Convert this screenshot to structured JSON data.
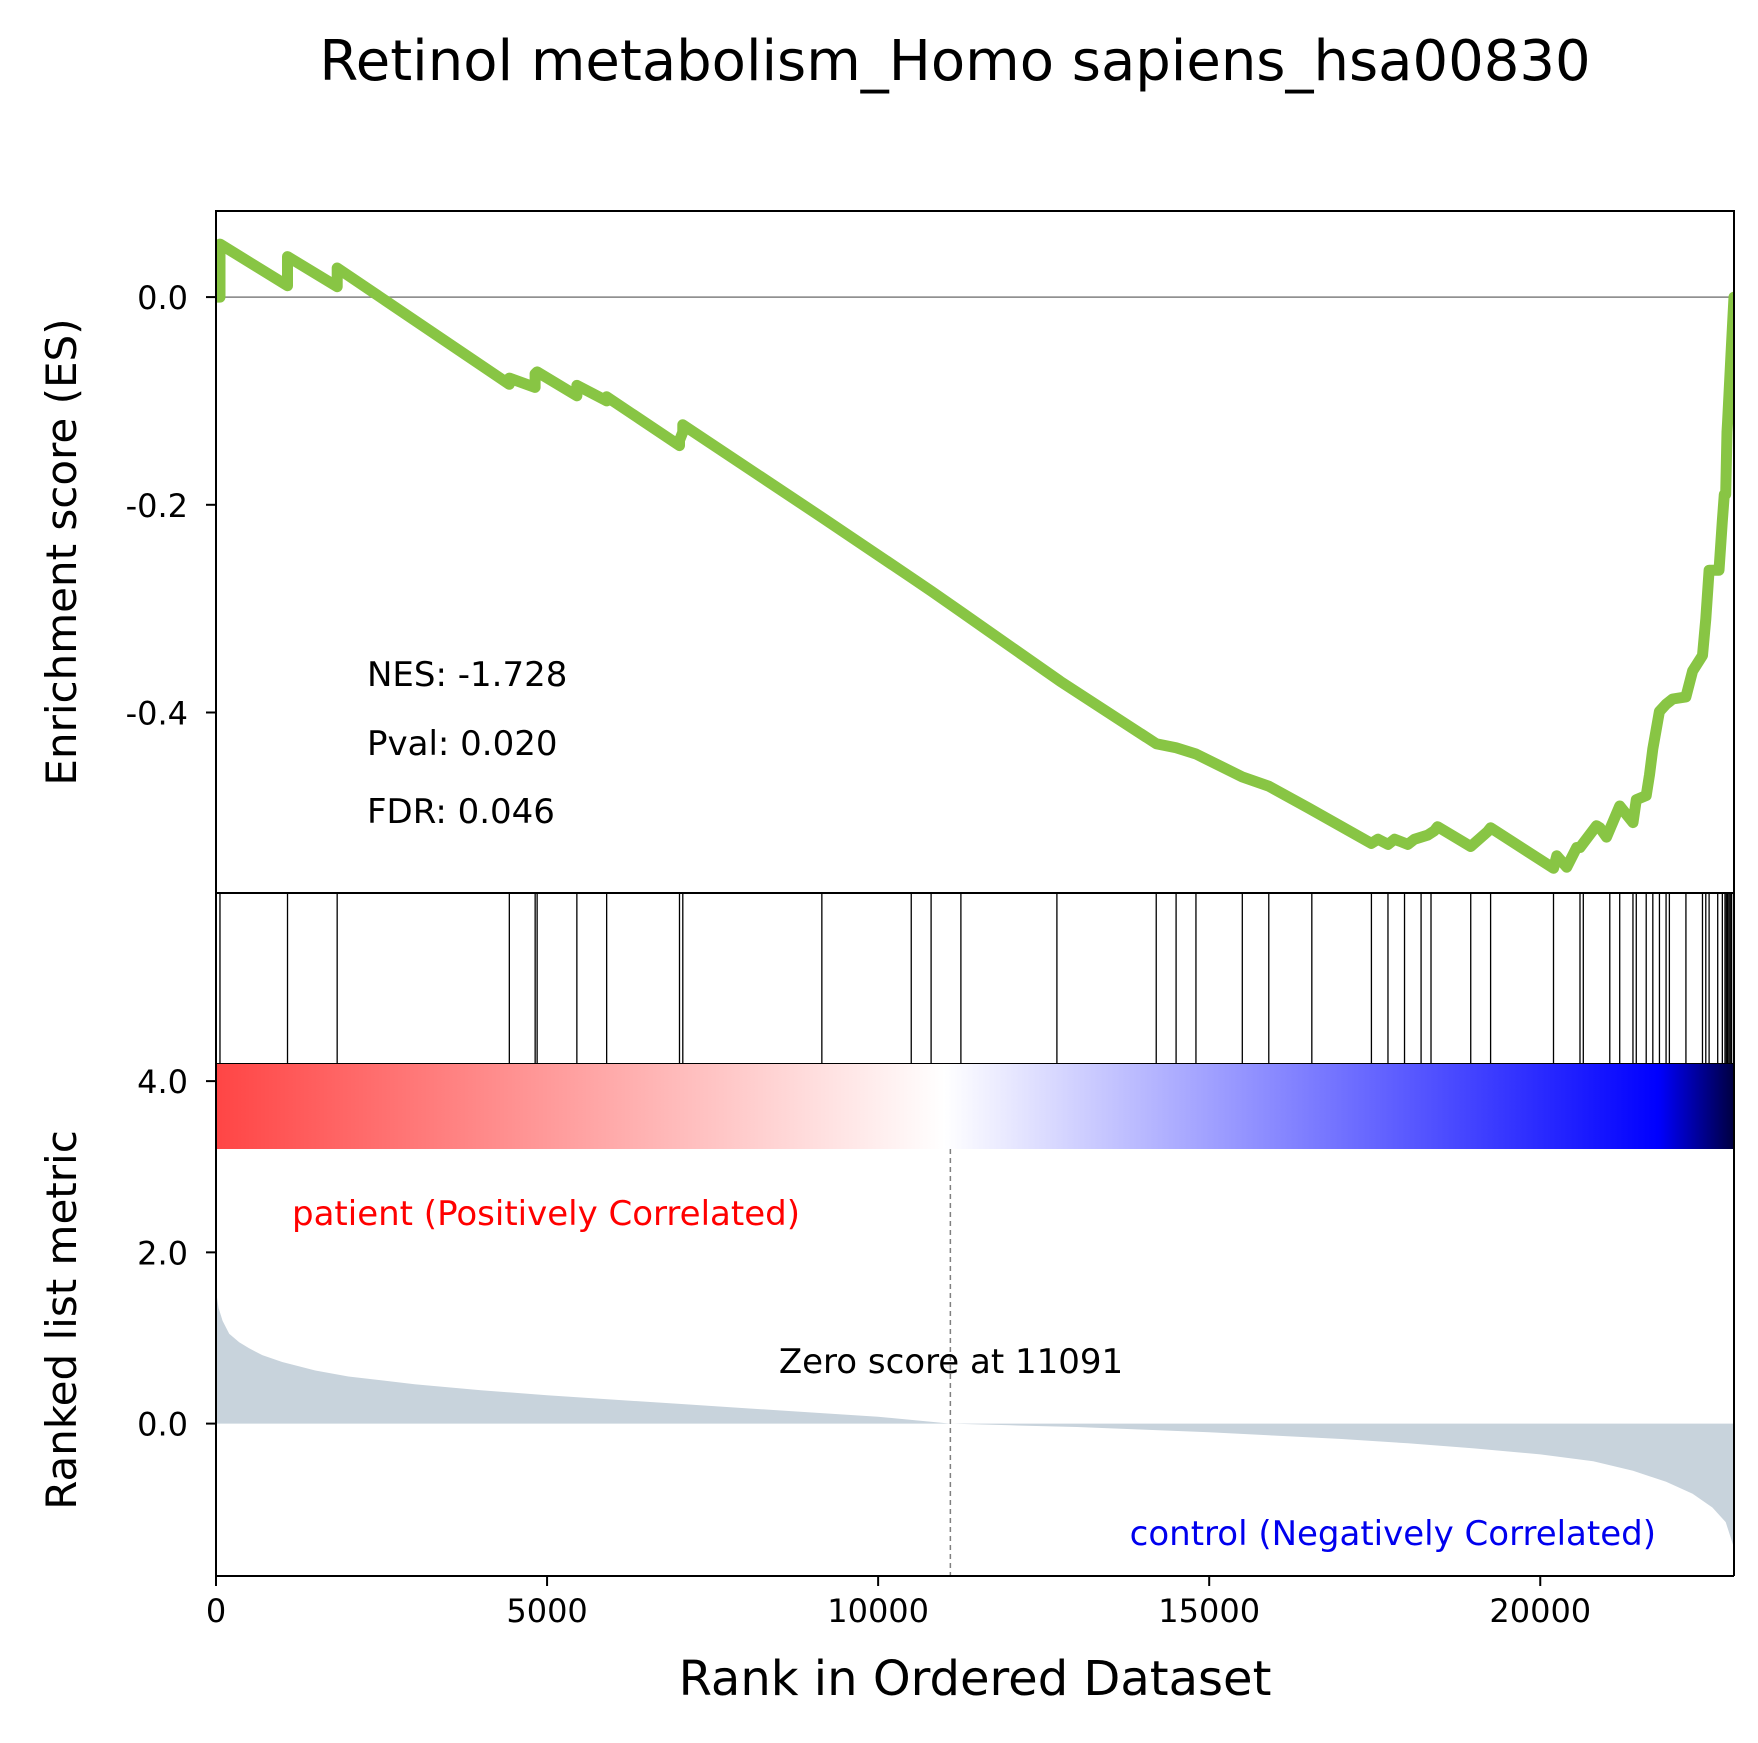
{
  "chart_data": {
    "type": "line",
    "title": "Retinol metabolism_Homo sapiens_hsa00830",
    "xlabel": "Rank in Ordered Dataset",
    "xlim": [
      0,
      22926
    ],
    "x_ticks": [
      "0",
      "5000",
      "10000",
      "15000",
      "20000"
    ],
    "x_tick_values": [
      0,
      5000,
      10000,
      15000,
      20000
    ],
    "es_panel": {
      "ylabel": "Enrichment score (ES)",
      "ylim": [
        -0.5738,
        0.0829
      ],
      "y_ticks": [
        "0.0",
        "-0.2",
        "-0.4"
      ],
      "y_tick_values": [
        0.0,
        -0.2,
        -0.4
      ],
      "zero_line": true,
      "line_color": "#88c544",
      "annotations": [
        "NES: -1.728",
        "Pval: 0.020",
        "FDR: 0.046"
      ],
      "es_curve": {
        "x": [
          0,
          60,
          60,
          1080,
          1080,
          1830,
          1830,
          4430,
          4430,
          4820,
          4820,
          4850,
          4850,
          5450,
          5450,
          5900,
          5900,
          7000,
          7000,
          7050,
          7050,
          9150,
          10500,
          10800,
          11250,
          12750,
          14200,
          14500,
          14800,
          15500,
          15900,
          16500,
          17450,
          17550,
          17700,
          17800,
          18000,
          18100,
          18300,
          18400,
          18450,
          18950,
          19200,
          19250,
          20200,
          20250,
          20400,
          20550,
          20600,
          20850,
          20900,
          21000,
          21200,
          21400,
          21450,
          21600,
          21650,
          21700,
          21800,
          21900,
          22000,
          22200,
          22300,
          22450,
          22500,
          22550,
          22700,
          22750,
          22780,
          22800,
          22820,
          22830,
          22880,
          22926
        ],
        "y": [
          0.0,
          0.0,
          0.051,
          0.011,
          0.039,
          0.01,
          0.028,
          -0.084,
          -0.078,
          -0.087,
          -0.074,
          -0.072,
          -0.072,
          -0.095,
          -0.085,
          -0.1,
          -0.096,
          -0.143,
          -0.138,
          -0.13,
          -0.123,
          -0.212,
          -0.27,
          -0.283,
          -0.303,
          -0.37,
          -0.43,
          -0.434,
          -0.44,
          -0.462,
          -0.471,
          -0.492,
          -0.526,
          -0.522,
          -0.527,
          -0.522,
          -0.527,
          -0.522,
          -0.518,
          -0.514,
          -0.51,
          -0.529,
          -0.515,
          -0.511,
          -0.55,
          -0.538,
          -0.549,
          -0.53,
          -0.53,
          -0.509,
          -0.511,
          -0.52,
          -0.49,
          -0.506,
          -0.484,
          -0.48,
          -0.46,
          -0.435,
          -0.399,
          -0.392,
          -0.387,
          -0.385,
          -0.36,
          -0.345,
          -0.31,
          -0.263,
          -0.263,
          -0.216,
          -0.19,
          -0.19,
          -0.13,
          -0.12,
          -0.055,
          0.0
        ]
      }
    },
    "hits": [
      60,
      1080,
      1830,
      4430,
      4820,
      4850,
      5450,
      5900,
      7000,
      7050,
      9150,
      10500,
      10800,
      11250,
      12700,
      14200,
      14500,
      14800,
      15500,
      15900,
      16550,
      17450,
      17700,
      17950,
      18200,
      18350,
      18950,
      19250,
      20200,
      20600,
      20650,
      21050,
      21200,
      21400,
      21450,
      21600,
      21700,
      21800,
      21900,
      21950,
      22200,
      22450,
      22500,
      22550,
      22680,
      22750,
      22790,
      22810,
      22830,
      22850,
      22870,
      22890
    ],
    "colorbar": {
      "colors": [
        "#ff4545",
        "#ffffff",
        "#0000ff",
        "#000040"
      ]
    },
    "metric_panel": {
      "ylabel": "Ranked list metric",
      "ylim": [
        -1.78,
        4.2
      ],
      "y_ticks": [
        "4.0",
        "2.0",
        "0.0"
      ],
      "y_tick_values": [
        4.0,
        2.0,
        0.0
      ],
      "fill_color": "#c8d3dc",
      "zero_cross": 11091,
      "zero_label": "Zero score at 11091",
      "pos_label": "patient (Positively Correlated)",
      "pos_color": "#ff0000",
      "neg_label": "control (Negatively Correlated)",
      "neg_color": "#0000ee",
      "metric_curve": {
        "x": [
          0,
          40,
          100,
          200,
          350,
          500,
          700,
          1000,
          1500,
          2000,
          3000,
          4000,
          5000,
          6000,
          7000,
          8000,
          9000,
          10000,
          11091,
          12000,
          13000,
          14000,
          15000,
          16000,
          17000,
          18000,
          19000,
          20000,
          20800,
          21400,
          21900,
          22300,
          22600,
          22800,
          22926
        ],
        "y": [
          1.55,
          1.35,
          1.2,
          1.05,
          0.95,
          0.88,
          0.8,
          0.72,
          0.62,
          0.55,
          0.46,
          0.39,
          0.33,
          0.28,
          0.23,
          0.18,
          0.13,
          0.08,
          0.0,
          -0.02,
          -0.04,
          -0.07,
          -0.1,
          -0.14,
          -0.18,
          -0.23,
          -0.29,
          -0.36,
          -0.44,
          -0.55,
          -0.68,
          -0.82,
          -0.98,
          -1.15,
          -1.45
        ]
      }
    }
  }
}
